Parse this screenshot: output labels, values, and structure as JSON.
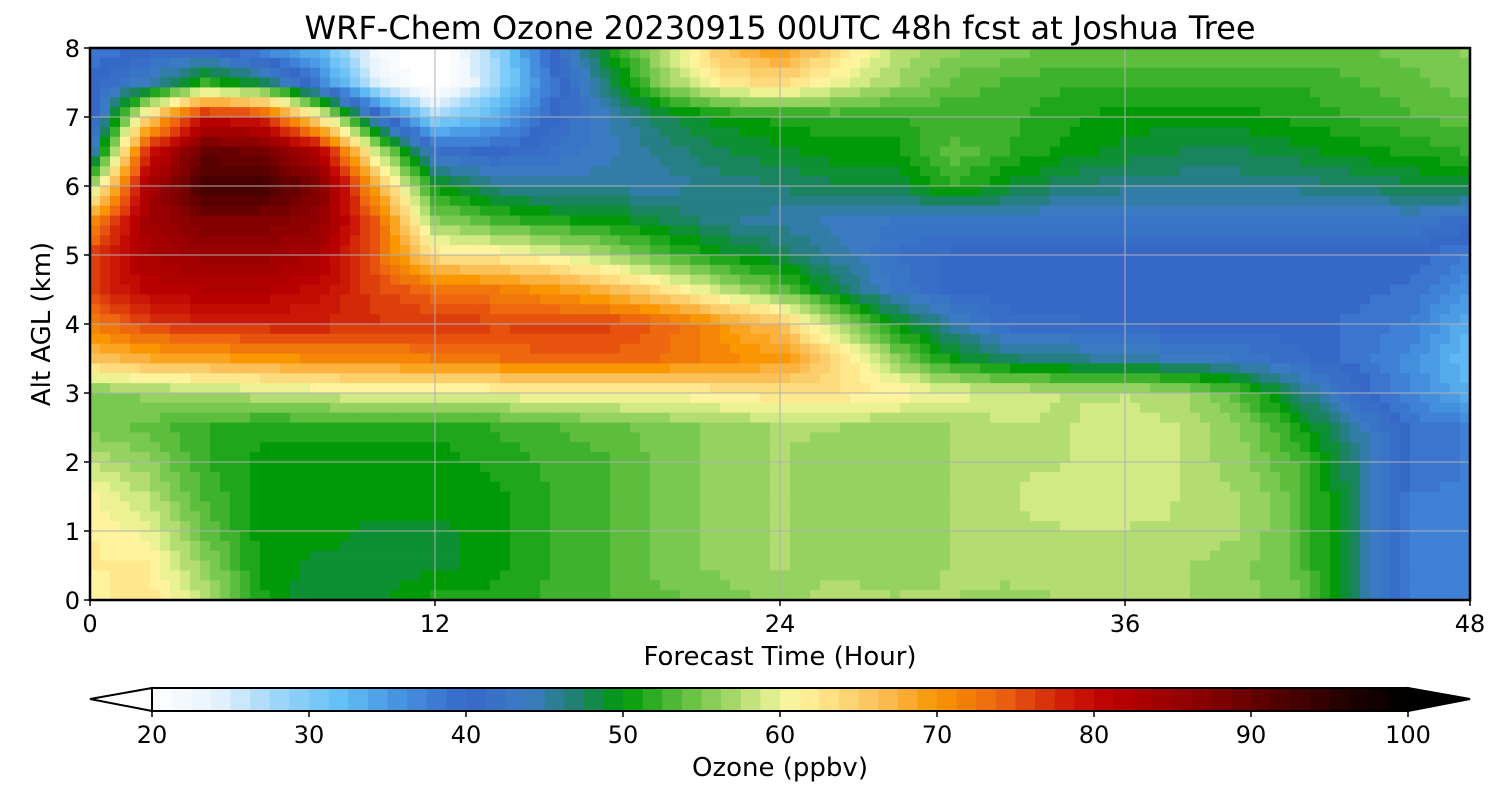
{
  "chart_data": {
    "type": "heatmap",
    "title": "WRF-Chem Ozone  20230915 00UTC 48h fcst at Joshua Tree",
    "xlabel": "Forecast Time (Hour)",
    "ylabel": "Alt AGL (km)",
    "xlim": [
      0,
      48
    ],
    "ylim": [
      0,
      8
    ],
    "xticks": [
      0,
      12,
      24,
      36,
      48
    ],
    "yticks": [
      0,
      1,
      2,
      3,
      4,
      5,
      6,
      7,
      8
    ],
    "grid": true,
    "x_hours": [
      0,
      2,
      4,
      6,
      8,
      10,
      12,
      14,
      16,
      18,
      20,
      22,
      24,
      26,
      28,
      30,
      32,
      34,
      36,
      38,
      40,
      42,
      44,
      46,
      48
    ],
    "y_km": [
      0,
      0.5,
      1,
      1.5,
      2,
      2.5,
      3,
      3.5,
      4,
      4.5,
      5,
      5.5,
      6,
      6.5,
      7,
      7.5,
      8
    ],
    "ozone_ppbv": [
      [
        61,
        63,
        58,
        51,
        48,
        49,
        51,
        51,
        52,
        53,
        54,
        55,
        56,
        58,
        57,
        57,
        56,
        57,
        58,
        57,
        56,
        55,
        47,
        38,
        38
      ],
      [
        62,
        62,
        56,
        50,
        49,
        49,
        49,
        50,
        52,
        53,
        55,
        56,
        57,
        56,
        56,
        57,
        58,
        58,
        58,
        57,
        56,
        54,
        47,
        38,
        38
      ],
      [
        62,
        60,
        54,
        50,
        50,
        49,
        49,
        50,
        52,
        53,
        55,
        56,
        57,
        56,
        56,
        57,
        58,
        58,
        58,
        58,
        57,
        54,
        47,
        38,
        38
      ],
      [
        61,
        58,
        53,
        50,
        50,
        50,
        50,
        50,
        52,
        53,
        55,
        56,
        57,
        56,
        56,
        57,
        58,
        59,
        59,
        58,
        57,
        54,
        47,
        38,
        38
      ],
      [
        58,
        56,
        52,
        50,
        50,
        50,
        50,
        51,
        52,
        53,
        55,
        56,
        57,
        56,
        56,
        57,
        58,
        58,
        59,
        58,
        56,
        53,
        47,
        39,
        38
      ],
      [
        55,
        54,
        52,
        51,
        51,
        51,
        51,
        52,
        53,
        54,
        55,
        56,
        57,
        57,
        56,
        57,
        58,
        58,
        59,
        58,
        56,
        51,
        45,
        39,
        38
      ],
      [
        55,
        56,
        57,
        58,
        59,
        60,
        60,
        60,
        61,
        61,
        61,
        62,
        63,
        63,
        62,
        60,
        59,
        58,
        58,
        57,
        53,
        47,
        41,
        37,
        33
      ],
      [
        66,
        68,
        69,
        70,
        71,
        71,
        72,
        73,
        74,
        74,
        73,
        71,
        70,
        64,
        56,
        50,
        47,
        46,
        45,
        44,
        43,
        41,
        39,
        36,
        32
      ],
      [
        72,
        76,
        78,
        78,
        78,
        77,
        77,
        76,
        76,
        76,
        74,
        70,
        66,
        57,
        50,
        45,
        41,
        41,
        40,
        40,
        40,
        40,
        39,
        38,
        33
      ],
      [
        76,
        81,
        82,
        82,
        80,
        76,
        73,
        72,
        70,
        67,
        63,
        58,
        54,
        48,
        43,
        40,
        40,
        40,
        40,
        40,
        40,
        40,
        40,
        39,
        36
      ],
      [
        76,
        83,
        85,
        85,
        83,
        74,
        63,
        62,
        60,
        57,
        53,
        50,
        48,
        45,
        42,
        40,
        40,
        40,
        40,
        40,
        40,
        40,
        40,
        40,
        38
      ],
      [
        70,
        84,
        88,
        88,
        86,
        74,
        56,
        53,
        51,
        50,
        48,
        46,
        45,
        44,
        43,
        43,
        43,
        43,
        43,
        43,
        43,
        43,
        43,
        43,
        41
      ],
      [
        56,
        83,
        93,
        93,
        88,
        68,
        50,
        46,
        45,
        45,
        45,
        46,
        47,
        48,
        48,
        52,
        49,
        47,
        46,
        46,
        46,
        46,
        47,
        48,
        49
      ],
      [
        42,
        78,
        90,
        89,
        82,
        58,
        42,
        40,
        42,
        44,
        46,
        48,
        49,
        50,
        50,
        54,
        52,
        50,
        49,
        48,
        48,
        49,
        50,
        51,
        52
      ],
      [
        38,
        64,
        80,
        78,
        62,
        42,
        28,
        33,
        40,
        44,
        48,
        50,
        51,
        52,
        52,
        52,
        52,
        51,
        50,
        50,
        50,
        51,
        52,
        53,
        54
      ],
      [
        40,
        44,
        52,
        48,
        38,
        24,
        18,
        27,
        38,
        47,
        56,
        62,
        64,
        60,
        57,
        54,
        53,
        52,
        52,
        52,
        52,
        52,
        53,
        54,
        55
      ],
      [
        38,
        40,
        40,
        36,
        32,
        22,
        18,
        28,
        40,
        50,
        58,
        66,
        70,
        64,
        58,
        56,
        55,
        54,
        54,
        54,
        54,
        54,
        54,
        55,
        56
      ]
    ],
    "colorbar": {
      "label": "Ozone  (ppbv)",
      "ticks": [
        "20",
        "30",
        "40",
        "50",
        "60",
        "70",
        "80",
        "90",
        "100"
      ],
      "min": 20,
      "max": 100,
      "extend": "both",
      "stops": [
        [
          20,
          "#ffffff"
        ],
        [
          24,
          "#e8f3fd"
        ],
        [
          28,
          "#9ed6fa"
        ],
        [
          32,
          "#62bff5"
        ],
        [
          36,
          "#4590df"
        ],
        [
          40,
          "#3668c8"
        ],
        [
          44,
          "#3b7cc4"
        ],
        [
          47,
          "#1f8070"
        ],
        [
          50,
          "#009a09"
        ],
        [
          54,
          "#63c041"
        ],
        [
          57,
          "#a6d86a"
        ],
        [
          59,
          "#d8ec88"
        ],
        [
          61,
          "#fff6a0"
        ],
        [
          64,
          "#fdd87a"
        ],
        [
          67,
          "#fbb84c"
        ],
        [
          70,
          "#f99600"
        ],
        [
          74,
          "#ee6410"
        ],
        [
          78,
          "#d02008"
        ],
        [
          81,
          "#bb0000"
        ],
        [
          86,
          "#920000"
        ],
        [
          92,
          "#500000"
        ],
        [
          97,
          "#1a0000"
        ],
        [
          100,
          "#000000"
        ]
      ]
    }
  }
}
